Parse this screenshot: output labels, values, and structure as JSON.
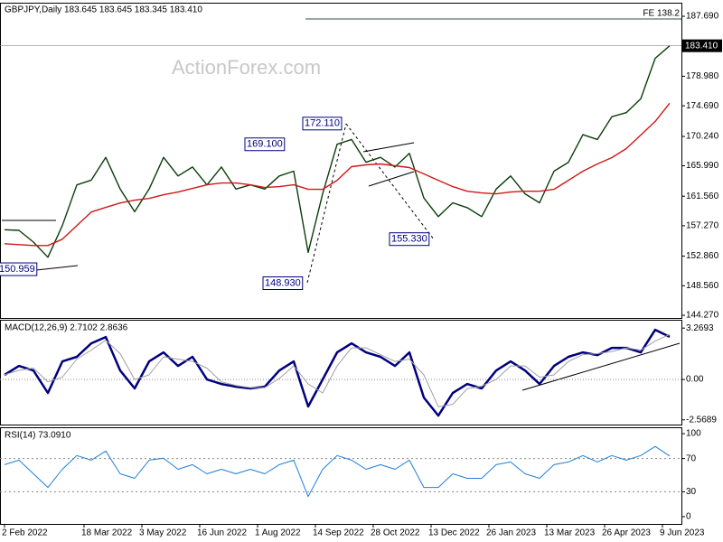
{
  "chart_data": [
    {
      "type": "line",
      "title": "GBPJPY,Daily  183.645 183.645 183.345 183.410",
      "watermark": "ActionForex.com",
      "x": [
        0,
        8,
        16,
        24,
        32,
        40,
        48,
        56,
        64,
        72,
        80,
        88,
        96,
        104,
        112,
        120,
        128,
        136,
        144,
        152,
        160,
        168,
        176,
        184,
        192,
        200,
        208,
        216,
        224,
        232,
        240,
        248,
        256,
        264,
        272,
        280,
        288,
        296,
        304,
        312,
        320,
        328,
        336,
        344,
        352,
        360,
        368
      ],
      "xlim": [
        -2.5,
        374.5
      ],
      "xticks": [
        {
          "value": 0,
          "label": "2 Feb 2022"
        },
        {
          "value": 44,
          "label": "18 Mar 2022"
        },
        {
          "value": 76,
          "label": "3 May 2022"
        },
        {
          "value": 108,
          "label": "16 Jun 2022"
        },
        {
          "value": 140,
          "label": "1 Aug 2022"
        },
        {
          "value": 172,
          "label": "14 Sep 2022"
        },
        {
          "value": 204,
          "label": "28 Oct 2022"
        },
        {
          "value": 236,
          "label": "13 Dec 2022"
        },
        {
          "value": 268,
          "label": "26 Jan 2023"
        },
        {
          "value": 300,
          "label": "13 Mar 2023"
        },
        {
          "value": 332,
          "label": "26 Apr 2023"
        },
        {
          "value": 364,
          "label": "9 Jun 2023"
        }
      ],
      "ylim": [
        143.88,
        189.53
      ],
      "yticks": [
        {
          "value": 187.69,
          "label": "187.690"
        },
        {
          "value": 178.98,
          "label": "178.980"
        },
        {
          "value": 174.69,
          "label": "174.690"
        },
        {
          "value": 170.24,
          "label": "170.240"
        },
        {
          "value": 165.99,
          "label": "165.990"
        },
        {
          "value": 161.56,
          "label": "161.560"
        },
        {
          "value": 157.27,
          "label": "157.270"
        },
        {
          "value": 152.86,
          "label": "152.860"
        },
        {
          "value": 148.56,
          "label": "148.560"
        },
        {
          "value": 144.27,
          "label": "144.270"
        }
      ],
      "last_price": {
        "value": 183.41,
        "label": "183.410"
      },
      "fe_level": {
        "value": 187.3,
        "label": "FE 138.2"
      },
      "annotations": [
        {
          "x": 20,
          "value": 150.959,
          "label": "150.959"
        },
        {
          "x": 157,
          "value": 169.1,
          "label": "169.100"
        },
        {
          "x": 167,
          "value": 148.93,
          "label": "148.930"
        },
        {
          "x": 189,
          "value": 172.11,
          "label": "172.110"
        },
        {
          "x": 237,
          "value": 155.33,
          "label": "155.330"
        }
      ],
      "series": [
        {
          "color": "#0b3d0b",
          "values": [
            156.7,
            156.6,
            154.9,
            152.7,
            157.3,
            163.2,
            163.9,
            167.2,
            162.6,
            159.3,
            162.6,
            167.2,
            164.5,
            165.8,
            163.2,
            165.8,
            162.6,
            163.2,
            162.6,
            164.5,
            165.2,
            153.4,
            161.9,
            169.1,
            169.8,
            166.5,
            167.2,
            165.8,
            167.8,
            161.3,
            158.6,
            160.6,
            159.9,
            158.6,
            162.6,
            164.5,
            161.9,
            160.6,
            165.2,
            166.5,
            170.5,
            169.8,
            173.1,
            173.7,
            175.7,
            181.6,
            183.41
          ]
        },
        {
          "color": "#d01818",
          "values": [
            154.66,
            154.53,
            154.4,
            154.4,
            155.32,
            157.29,
            159.27,
            159.93,
            160.58,
            160.98,
            161.24,
            161.77,
            162.16,
            162.69,
            163.22,
            163.48,
            163.48,
            163.22,
            162.82,
            162.95,
            163.22,
            162.56,
            162.56,
            163.87,
            165.85,
            166.11,
            166.24,
            165.98,
            165.72,
            164.8,
            163.87,
            162.95,
            162.29,
            162.03,
            161.9,
            162.16,
            162.29,
            162.29,
            162.56,
            163.87,
            165.19,
            166.24,
            167.16,
            168.48,
            170.45,
            172.43,
            175.06
          ]
        }
      ]
    },
    {
      "type": "line",
      "title": "MACD(12,26,9) 2.7102 2.8636",
      "ylim": [
        -2.87,
        3.74
      ],
      "yticks": [
        {
          "value": 3.2693,
          "label": "3.2693"
        },
        {
          "value": 0,
          "label": "0.00"
        },
        -2.5689
      ],
      "zero_line": true,
      "series": [
        {
          "color": "#000080",
          "width": 2.5,
          "values": [
            0.29,
            0.86,
            0.57,
            -0.86,
            1.15,
            1.44,
            2.3,
            2.7,
            0.57,
            -0.57,
            1.15,
            1.72,
            0.86,
            1.44,
            0,
            -0.29,
            -0.46,
            -0.57,
            -0.46,
            0.57,
            1.15,
            -1.72,
            0,
            1.72,
            2.3,
            1.72,
            1.44,
            0.86,
            1.72,
            -1.15,
            -2.3,
            -0.86,
            -0.29,
            -0.57,
            0.57,
            1.15,
            0.57,
            -0.29,
            0.86,
            1.44,
            1.72,
            1.55,
            2.01,
            2.01,
            1.72,
            3.16,
            2.7102
          ]
        },
        {
          "color": "#a0a0a0",
          "width": 1,
          "values": [
            0.3,
            0.58,
            0.72,
            -0.15,
            0.15,
            1.3,
            1.87,
            2.5,
            1.64,
            0,
            0.29,
            1.44,
            1.29,
            1.15,
            0.72,
            -0.15,
            -0.38,
            -0.52,
            -0.52,
            0.06,
            0.86,
            -0.29,
            -0.86,
            0.86,
            2.01,
            2.01,
            1.58,
            1.15,
            1.29,
            0.29,
            -1.73,
            -1.58,
            -0.58,
            -0.43,
            0,
            0.86,
            0.86,
            0.14,
            0.29,
            1.15,
            1.58,
            1.64,
            1.78,
            2.01,
            1.87,
            2.44,
            2.8636
          ]
        }
      ]
    },
    {
      "type": "line",
      "title": "RSI(14) 73.0910",
      "ylim": [
        -8.8,
        106.6
      ],
      "yticks": [
        100,
        70,
        30,
        0
      ],
      "levels": [
        70,
        30
      ],
      "series": [
        {
          "color": "#1e7fd8",
          "width": 1,
          "values": [
            62.6,
            68.1,
            51.6,
            35.2,
            57.1,
            73.6,
            68.1,
            79.1,
            51.6,
            46.2,
            68.1,
            70.3,
            57.1,
            62.6,
            51.6,
            57.1,
            51.6,
            57.1,
            51.6,
            62.6,
            68.1,
            24.2,
            57.1,
            73.6,
            68.1,
            57.1,
            62.6,
            57.1,
            68.1,
            35.2,
            35.2,
            51.6,
            46.2,
            46.2,
            62.6,
            65.9,
            51.6,
            46.2,
            62.6,
            65.9,
            73.6,
            65.9,
            73.6,
            68.1,
            73.6,
            84.6,
            73.091
          ]
        }
      ]
    }
  ]
}
